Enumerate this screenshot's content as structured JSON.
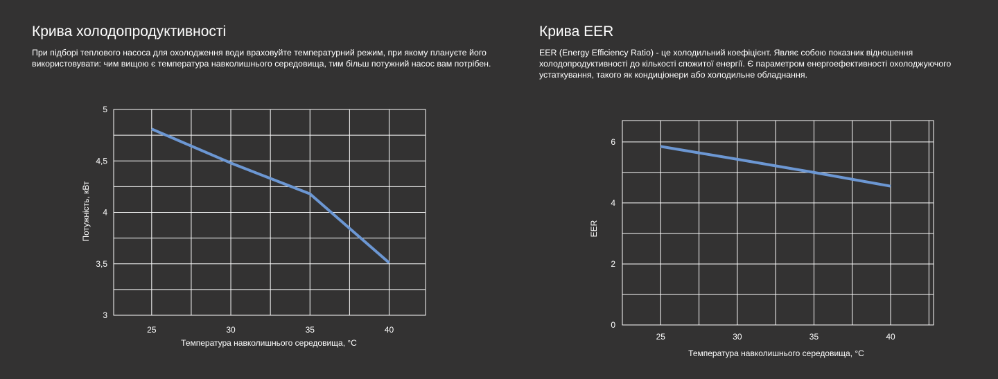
{
  "panels": [
    {
      "title": "Крива холодопродуктивності",
      "description_lines": [
        "При підборі теплового насоса для охолодження води враховуйте температурний режим, при якому плануєте його",
        "використовувати: чим вищою є температура навколишнього середовища, тим більш потужний насос вам потрібен."
      ]
    },
    {
      "title": "Крива EER",
      "description_lines": [
        "EER (Energy Efficiency Ratio) - це холодильний коефіцієнт. Являє собою показник відношення",
        "холодопродуктивності до кількості спожитої енергії. Є параметром енергоефективності охолоджуючого",
        "устаткування, такого як кондиціонери або холодильне обладнання."
      ]
    }
  ],
  "colors": {
    "background": "#333232",
    "grid": "#ffffff",
    "line": "#6c97d3",
    "text": "#ffffff"
  },
  "chart_data": [
    {
      "type": "line",
      "xlabel": "Температура навколишнього середовища, °C",
      "ylabel": "Потужність, кВт",
      "x_ticks": [
        25,
        30,
        35,
        40
      ],
      "y_ticks": [
        "5",
        "4,5",
        "4",
        "3,5",
        "3"
      ],
      "y_tick_values": [
        5,
        4.5,
        4,
        3.5,
        3
      ],
      "xlim": [
        22.6,
        42.3
      ],
      "ylim": [
        3,
        5
      ],
      "grid": true,
      "series": [
        {
          "x": [
            25,
            30,
            35,
            40
          ],
          "y": [
            4.81,
            4.48,
            4.18,
            3.51
          ]
        }
      ]
    },
    {
      "type": "line",
      "xlabel": "Температура навколишнього середовища, °C",
      "ylabel": "EER",
      "x_ticks": [
        25,
        30,
        35,
        40
      ],
      "y_ticks": [
        "6",
        "4",
        "2",
        "0"
      ],
      "y_tick_values": [
        6,
        4,
        2,
        0
      ],
      "xlim": [
        22.5,
        42.8
      ],
      "ylim": [
        0,
        6.7
      ],
      "grid": true,
      "series": [
        {
          "x": [
            25,
            30,
            35,
            40
          ],
          "y": [
            5.85,
            5.43,
            5.0,
            4.55
          ]
        }
      ]
    }
  ]
}
